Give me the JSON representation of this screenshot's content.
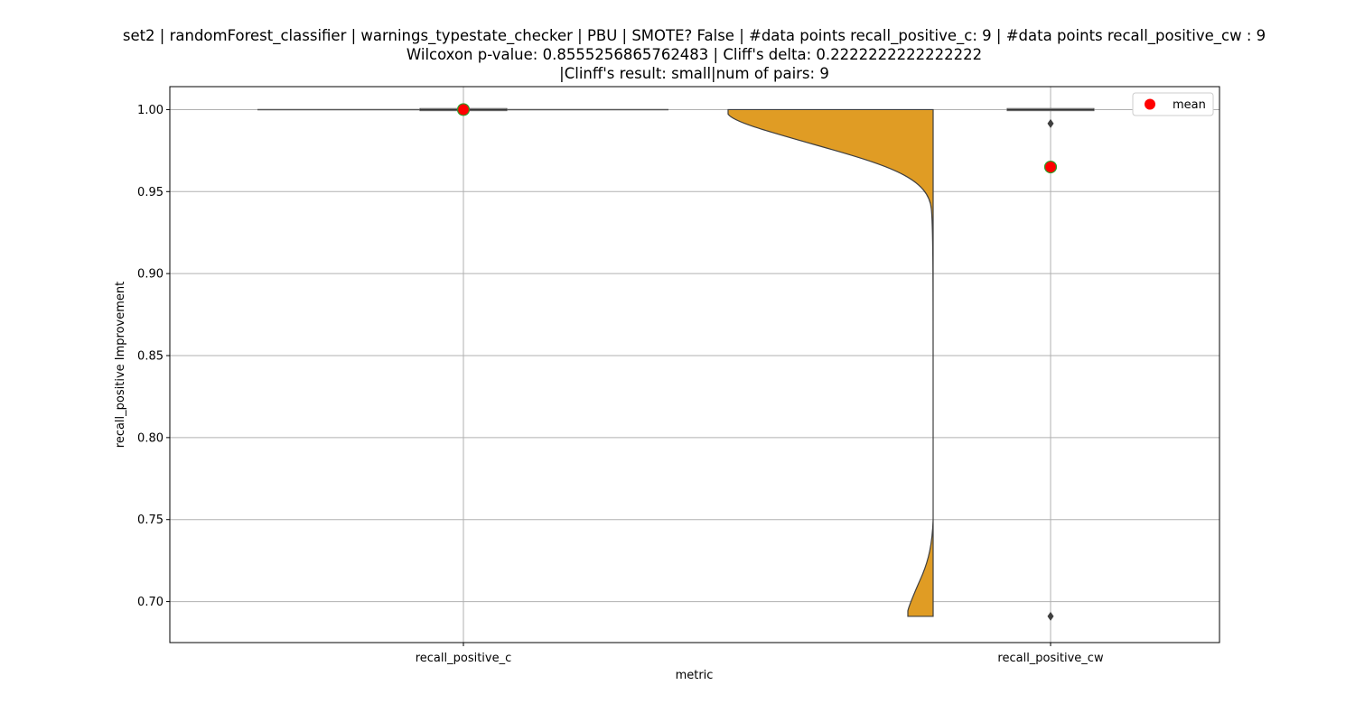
{
  "chart_data": {
    "type": "violin",
    "title_lines": [
      "set2 | randomForest_classifier | warnings_typestate_checker | PBU | SMOTE? False | #data points recall_positive_c: 9 | #data points recall_positive_cw : 9",
      "Wilcoxon p-value: 0.8555256865762483 | Cliff's delta: 0.2222222222222222",
      "|Clinff's result: small|num of pairs: 9"
    ],
    "xlabel": "metric",
    "ylabel": "recall_positive Improvement",
    "categories": [
      "recall_positive_c",
      "recall_positive_cw"
    ],
    "ylim": [
      0.675,
      1.014
    ],
    "yticks": [
      0.7,
      0.75,
      0.8,
      0.85,
      0.9,
      0.95,
      1.0
    ],
    "ytick_labels": [
      "0.70",
      "0.75",
      "0.80",
      "0.85",
      "0.90",
      "0.95",
      "1.00"
    ],
    "grid": true,
    "legend": {
      "position": "top-right",
      "entries": [
        {
          "label": "mean",
          "color": "#ff0000"
        }
      ]
    },
    "series": [
      {
        "category": "recall_positive_c",
        "box": {
          "q1": 1.0,
          "median": 1.0,
          "q3": 1.0,
          "whisker_low": 1.0,
          "whisker_high": 1.0
        },
        "mean": 1.0,
        "outliers": []
      },
      {
        "category": "recall_positive_cw",
        "violin_fill": "#e09c24",
        "box": {
          "q1": 1.0,
          "median": 1.0,
          "q3": 1.0,
          "whisker_low": 1.0,
          "whisker_high": 1.0
        },
        "mean": 0.965,
        "outliers": [
          0.9915,
          0.691
        ]
      }
    ],
    "mean_marker_color": "#ff0000",
    "mean_marker_edge": "#2ca02c"
  }
}
